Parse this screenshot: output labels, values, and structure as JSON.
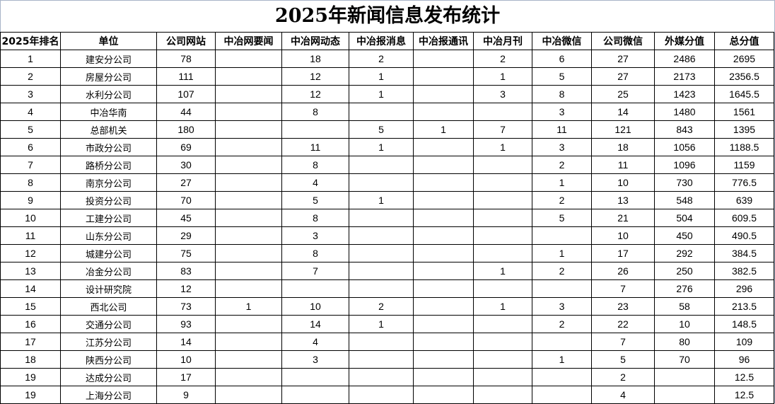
{
  "title": "2025年新闻信息发布统计",
  "columns": [
    "2025年排名",
    "单位",
    "公司网站",
    "中冶网要闻",
    "中冶网动态",
    "中冶报消息",
    "中冶报通讯",
    "中冶月刊",
    "中冶微信",
    "公司微信",
    "外媒分值",
    "总分值"
  ],
  "rows": [
    [
      "1",
      "建安分公司",
      "78",
      "",
      "18",
      "2",
      "",
      "2",
      "6",
      "27",
      "2486",
      "2695"
    ],
    [
      "2",
      "房屋分公司",
      "111",
      "",
      "12",
      "1",
      "",
      "1",
      "5",
      "27",
      "2173",
      "2356.5"
    ],
    [
      "3",
      "水利分公司",
      "107",
      "",
      "12",
      "1",
      "",
      "3",
      "8",
      "25",
      "1423",
      "1645.5"
    ],
    [
      "4",
      "中冶华南",
      "44",
      "",
      "8",
      "",
      "",
      "",
      "3",
      "14",
      "1480",
      "1561"
    ],
    [
      "5",
      "总部机关",
      "180",
      "",
      "",
      "5",
      "1",
      "7",
      "11",
      "121",
      "843",
      "1395"
    ],
    [
      "6",
      "市政分公司",
      "69",
      "",
      "11",
      "1",
      "",
      "1",
      "3",
      "18",
      "1056",
      "1188.5"
    ],
    [
      "7",
      "路桥分公司",
      "30",
      "",
      "8",
      "",
      "",
      "",
      "2",
      "11",
      "1096",
      "1159"
    ],
    [
      "8",
      "南京分公司",
      "27",
      "",
      "4",
      "",
      "",
      "",
      "1",
      "10",
      "730",
      "776.5"
    ],
    [
      "9",
      "投资分公司",
      "70",
      "",
      "5",
      "1",
      "",
      "",
      "2",
      "13",
      "548",
      "639"
    ],
    [
      "10",
      "工建分公司",
      "45",
      "",
      "8",
      "",
      "",
      "",
      "5",
      "21",
      "504",
      "609.5"
    ],
    [
      "11",
      "山东分公司",
      "29",
      "",
      "3",
      "",
      "",
      "",
      "",
      "10",
      "450",
      "490.5"
    ],
    [
      "12",
      "城建分公司",
      "75",
      "",
      "8",
      "",
      "",
      "",
      "1",
      "17",
      "292",
      "384.5"
    ],
    [
      "13",
      "冶金分公司",
      "83",
      "",
      "7",
      "",
      "",
      "1",
      "2",
      "26",
      "250",
      "382.5"
    ],
    [
      "14",
      "设计研究院",
      "12",
      "",
      "",
      "",
      "",
      "",
      "",
      "7",
      "276",
      "296"
    ],
    [
      "15",
      "西北公司",
      "73",
      "1",
      "10",
      "2",
      "",
      "1",
      "3",
      "23",
      "58",
      "213.5"
    ],
    [
      "16",
      "交通分公司",
      "93",
      "",
      "14",
      "1",
      "",
      "",
      "2",
      "22",
      "10",
      "148.5"
    ],
    [
      "17",
      "江苏分公司",
      "14",
      "",
      "4",
      "",
      "",
      "",
      "",
      "7",
      "80",
      "109"
    ],
    [
      "18",
      "陕西分公司",
      "10",
      "",
      "3",
      "",
      "",
      "",
      "1",
      "5",
      "70",
      "96"
    ],
    [
      "19",
      "达成分公司",
      "17",
      "",
      "",
      "",
      "",
      "",
      "",
      "2",
      "",
      "12.5"
    ],
    [
      "19",
      "上海分公司",
      "9",
      "",
      "",
      "",
      "",
      "",
      "",
      "4",
      "",
      "12.5"
    ]
  ]
}
